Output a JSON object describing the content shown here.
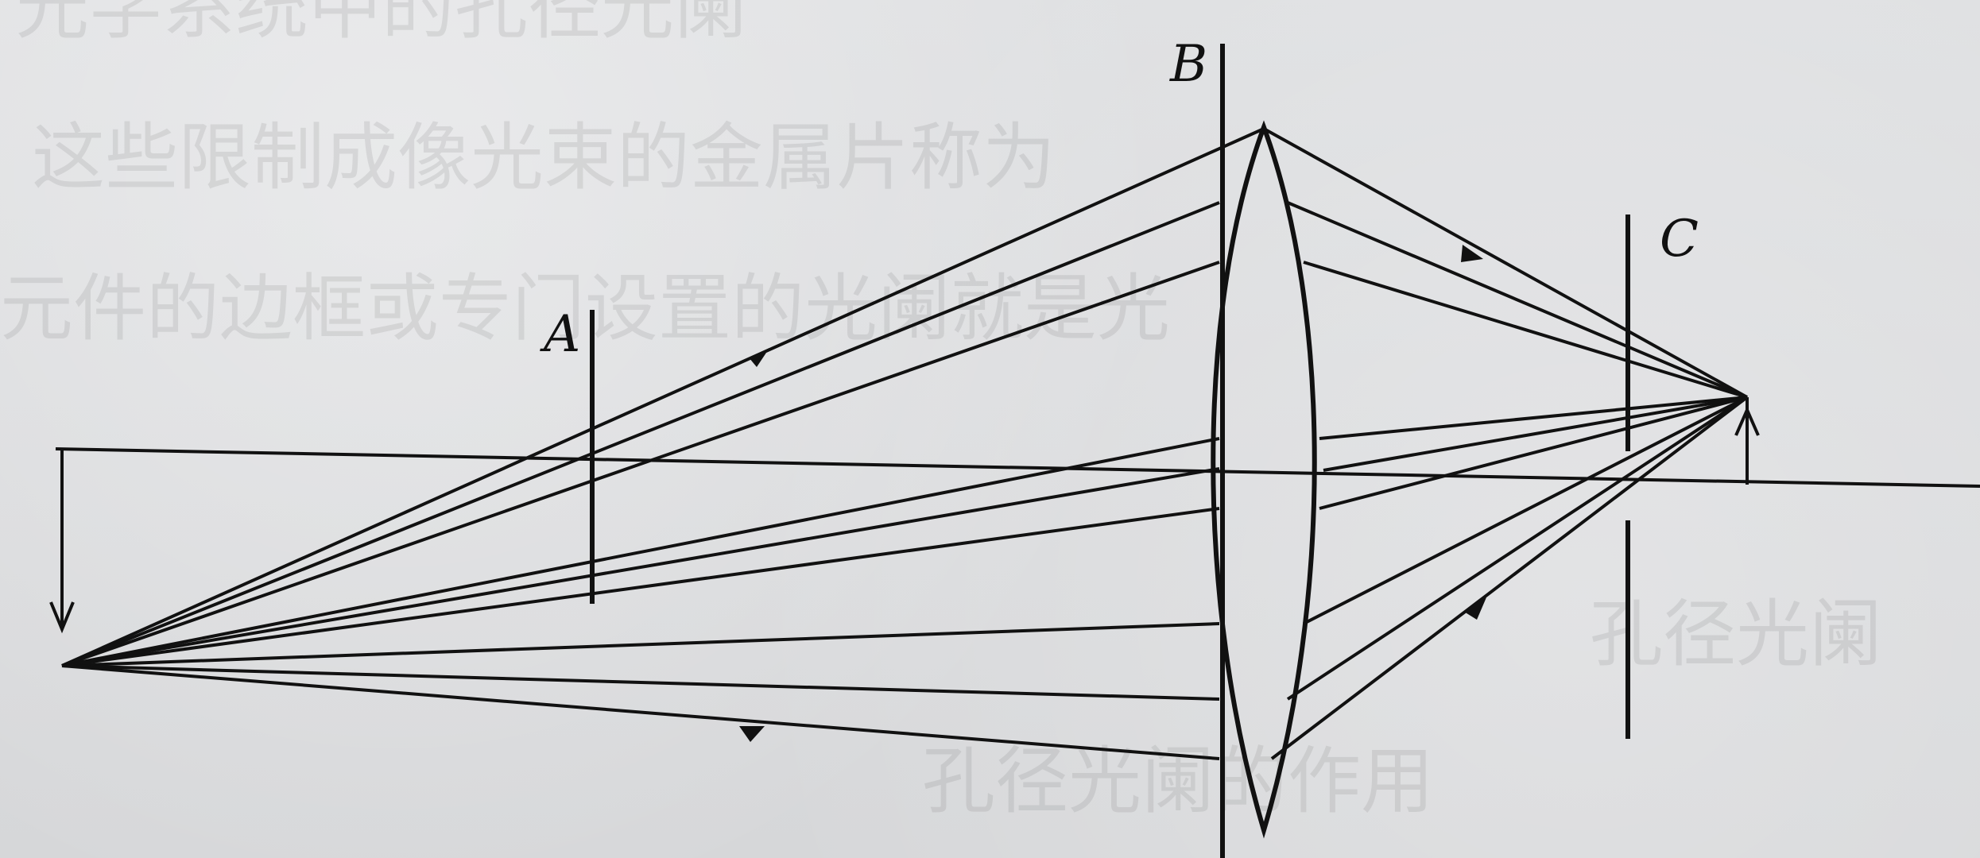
{
  "labels": {
    "a": "A",
    "b": "B",
    "c": "C"
  },
  "background_text": [
    "光学系统中的孔径光阑",
    "这些限制成像光束的金属片称为",
    "元件的边框或专门设置的光阑就是光",
    "孔径光阑",
    "孔径光阑的作用"
  ],
  "colors": {
    "ink": "#111111",
    "paper": "#d9dadc"
  },
  "icons": {
    "arrow": "filled-triangle"
  }
}
